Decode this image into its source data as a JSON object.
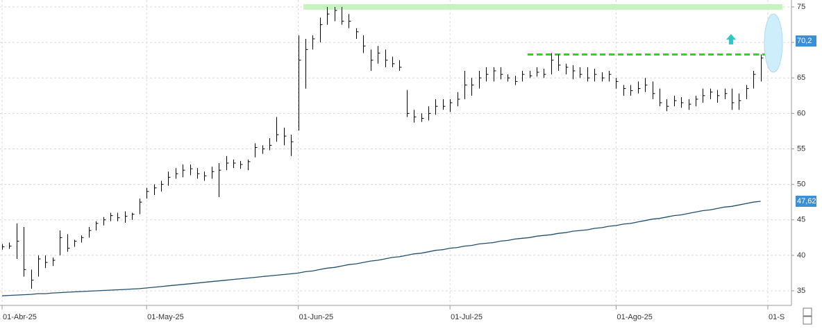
{
  "chart_data": {
    "type": "ohlc",
    "categories": [
      "01-Abr-25",
      null,
      null,
      null,
      null,
      null,
      null,
      null,
      null,
      null,
      null,
      null,
      null,
      null,
      null,
      null,
      null,
      null,
      null,
      null,
      "01-May-25",
      null,
      null,
      null,
      null,
      null,
      null,
      null,
      null,
      null,
      null,
      null,
      null,
      null,
      null,
      null,
      null,
      null,
      null,
      null,
      null,
      "01-Jun-25",
      null,
      null,
      null,
      null,
      null,
      null,
      null,
      null,
      null,
      null,
      null,
      null,
      null,
      null,
      null,
      null,
      null,
      null,
      null,
      null,
      "01-Jul-25",
      null,
      null,
      null,
      null,
      null,
      null,
      null,
      null,
      null,
      null,
      null,
      null,
      null,
      null,
      null,
      null,
      null,
      null,
      null,
      null,
      null,
      null,
      "01-Ago-25",
      null,
      null,
      null,
      null,
      null,
      null,
      null,
      null,
      null,
      null,
      null,
      null,
      null,
      null,
      null,
      null,
      null,
      null,
      null,
      null,
      "01-S"
    ],
    "high": [
      41.6,
      41.8,
      44.5,
      44,
      38,
      40,
      40,
      39.7,
      43.5,
      43,
      42.2,
      42.8,
      44,
      44.8,
      45.4,
      46,
      46,
      46.2,
      46,
      48,
      49.5,
      50,
      50.5,
      51.8,
      52.3,
      52.8,
      52.8,
      52.3,
      51.8,
      52.5,
      53,
      54,
      53.5,
      53.3,
      53.5,
      55.8,
      55.5,
      56.5,
      59.5,
      58,
      57,
      71,
      70.5,
      71,
      73.5,
      75,
      75,
      75,
      74,
      72,
      71,
      69,
      69.5,
      69,
      68,
      67.5,
      63.3,
      60.5,
      60,
      61,
      62,
      62,
      62,
      63,
      66,
      65,
      66,
      66.5,
      66.5,
      66.5,
      65.5,
      65.3,
      66,
      66,
      66.5,
      66.3,
      68.5,
      68.3,
      67,
      66.8,
      66.5,
      66.5,
      66.3,
      65.8,
      66,
      65,
      64,
      64,
      64.5,
      65,
      64.5,
      63.5,
      62,
      62.5,
      62.3,
      62,
      62.5,
      63.5,
      63.5,
      63.3,
      63.5,
      63.5,
      62.8,
      64,
      66,
      68.3,
      73
    ],
    "low": [
      40.8,
      40.9,
      39.5,
      37,
      35.3,
      37,
      38.2,
      38.5,
      40,
      40.5,
      41.2,
      41.8,
      42.5,
      43.5,
      44.2,
      44.8,
      44.8,
      44.6,
      45,
      45.8,
      48,
      48.5,
      49,
      49.8,
      50.8,
      51,
      51.3,
      50.8,
      50.5,
      50.8,
      48.2,
      52,
      52.3,
      52.2,
      52,
      53.8,
      54.3,
      54.8,
      56,
      55.5,
      54,
      57.6,
      63.5,
      69,
      70,
      72.5,
      73,
      72.5,
      72,
      70.5,
      68.5,
      66,
      67,
      66.5,
      66.5,
      66,
      59.5,
      58.7,
      58.8,
      59,
      59.8,
      60.5,
      60.2,
      61,
      62,
      62.5,
      63.5,
      64.5,
      64.5,
      64.8,
      64.5,
      64,
      64.5,
      65,
      65.2,
      65,
      65.5,
      66,
      65.5,
      64.8,
      65,
      64.5,
      64.5,
      64.5,
      64.5,
      63.5,
      62.5,
      62.5,
      62.8,
      63,
      62,
      61,
      60.3,
      61,
      60.8,
      60.5,
      61,
      61.5,
      62,
      61.5,
      62,
      60.5,
      60.5,
      62,
      63.5,
      64.5,
      69.5
    ],
    "close": [
      41.2,
      41.3,
      42,
      38,
      36.5,
      39.5,
      39,
      39.3,
      42.5,
      41,
      42,
      42.5,
      43.5,
      44.5,
      45,
      45.6,
      45.3,
      45.5,
      45.8,
      47.5,
      49,
      49.5,
      50,
      51,
      51.5,
      52,
      52.2,
      51.5,
      51.2,
      51.8,
      52,
      53,
      53,
      52.8,
      53.2,
      55.2,
      55,
      55.5,
      57,
      56.8,
      56,
      67.5,
      69,
      70.5,
      72.5,
      74,
      74.5,
      73,
      73,
      71.5,
      69.5,
      67.5,
      68.5,
      67.5,
      67,
      66.5,
      60,
      59.5,
      59.3,
      60,
      61,
      61,
      61.5,
      62,
      64,
      64,
      65,
      65.5,
      66,
      65.5,
      65,
      64.5,
      65.5,
      65.3,
      65.8,
      65.5,
      67.5,
      66.8,
      66.5,
      66,
      65.5,
      65,
      65.5,
      65,
      65.5,
      64.5,
      63.5,
      63.2,
      63.5,
      64,
      62.8,
      61.5,
      61,
      61.8,
      61.5,
      61.3,
      62,
      62.5,
      63,
      62.5,
      62.8,
      61.5,
      61.8,
      63.5,
      65.5,
      67.8,
      70.2
    ],
    "bar_color": "#000000",
    "ma": {
      "color": "#1f4e6e",
      "values": [
        34.3,
        34.35,
        34.4,
        34.45,
        34.5,
        34.6,
        34.6,
        34.7,
        34.75,
        34.8,
        34.85,
        34.9,
        34.95,
        35.0,
        35.05,
        35.1,
        35.15,
        35.2,
        35.25,
        35.3,
        35.4,
        35.5,
        35.6,
        35.7,
        35.8,
        35.9,
        36.0,
        36.1,
        36.2,
        36.3,
        36.4,
        36.5,
        36.6,
        36.7,
        36.8,
        36.9,
        37.0,
        37.1,
        37.2,
        37.3,
        37.4,
        37.5,
        37.7,
        37.8,
        38.0,
        38.2,
        38.3,
        38.5,
        38.7,
        38.8,
        39.0,
        39.2,
        39.3,
        39.5,
        39.7,
        39.8,
        40.0,
        40.2,
        40.3,
        40.5,
        40.7,
        40.8,
        41.0,
        41.1,
        41.3,
        41.4,
        41.6,
        41.7,
        41.8,
        42.0,
        42.1,
        42.3,
        42.4,
        42.5,
        42.7,
        42.8,
        42.9,
        43.1,
        43.2,
        43.4,
        43.5,
        43.6,
        43.8,
        43.9,
        44.1,
        44.2,
        44.4,
        44.5,
        44.7,
        44.9,
        45.1,
        45.2,
        45.4,
        45.6,
        45.7,
        45.9,
        46.1,
        46.3,
        46.4,
        46.6,
        46.8,
        46.9,
        47.1,
        47.3,
        47.5,
        47.62,
        null
      ]
    },
    "ylim": [
      35,
      75
    ],
    "yticks": [
      35,
      40,
      45,
      50,
      55,
      60,
      65,
      70,
      75
    ],
    "grid": true,
    "top_band": {
      "value": 75,
      "color": "#c6f3bf"
    },
    "resistance": {
      "value": 68.3,
      "color": "#22dd11"
    },
    "last_price": {
      "value": 70.2,
      "label": "70,2",
      "color": "#3a8fd6"
    },
    "ma_last": {
      "value": 47.62,
      "label": "47,62",
      "color": "#3a8fd6"
    }
  }
}
